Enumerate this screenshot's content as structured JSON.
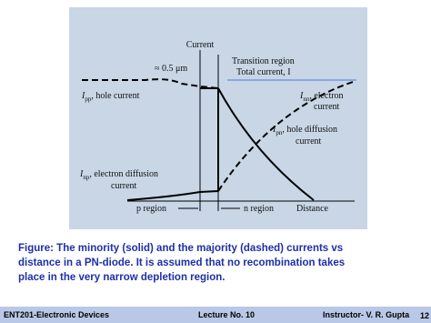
{
  "diagram": {
    "axis_y": "Current",
    "width_note": "≈ 0.5 μm",
    "transition": "Transition region",
    "total": "Total current, I",
    "ipp": {
      "symbol": "I",
      "sub": "pp",
      "text": ", hole current"
    },
    "inn": {
      "symbol": "I",
      "sub": "nn",
      "text": ", electron",
      "text2": "current"
    },
    "ipn": {
      "symbol": "I",
      "sub": "pn",
      "text": ", hole diffusion",
      "text2": "current"
    },
    "inp": {
      "symbol": "I",
      "sub": "np",
      "text": ", electron diffusion",
      "text2": "current"
    },
    "p_region": "p region",
    "n_region": "n region",
    "axis_x": "Distance"
  },
  "caption": [
    "Figure: The minority (solid) and the majority (dashed) currents vs",
    "distance in a PN-diode. It is assumed that no recombination takes",
    "place in the very narrow depletion region."
  ],
  "footer": {
    "course": "ENT201-Electronic Devices",
    "lecture": "Lecture No. 10",
    "instructor": "Instructor- V. R. Gupta",
    "page": "12"
  }
}
